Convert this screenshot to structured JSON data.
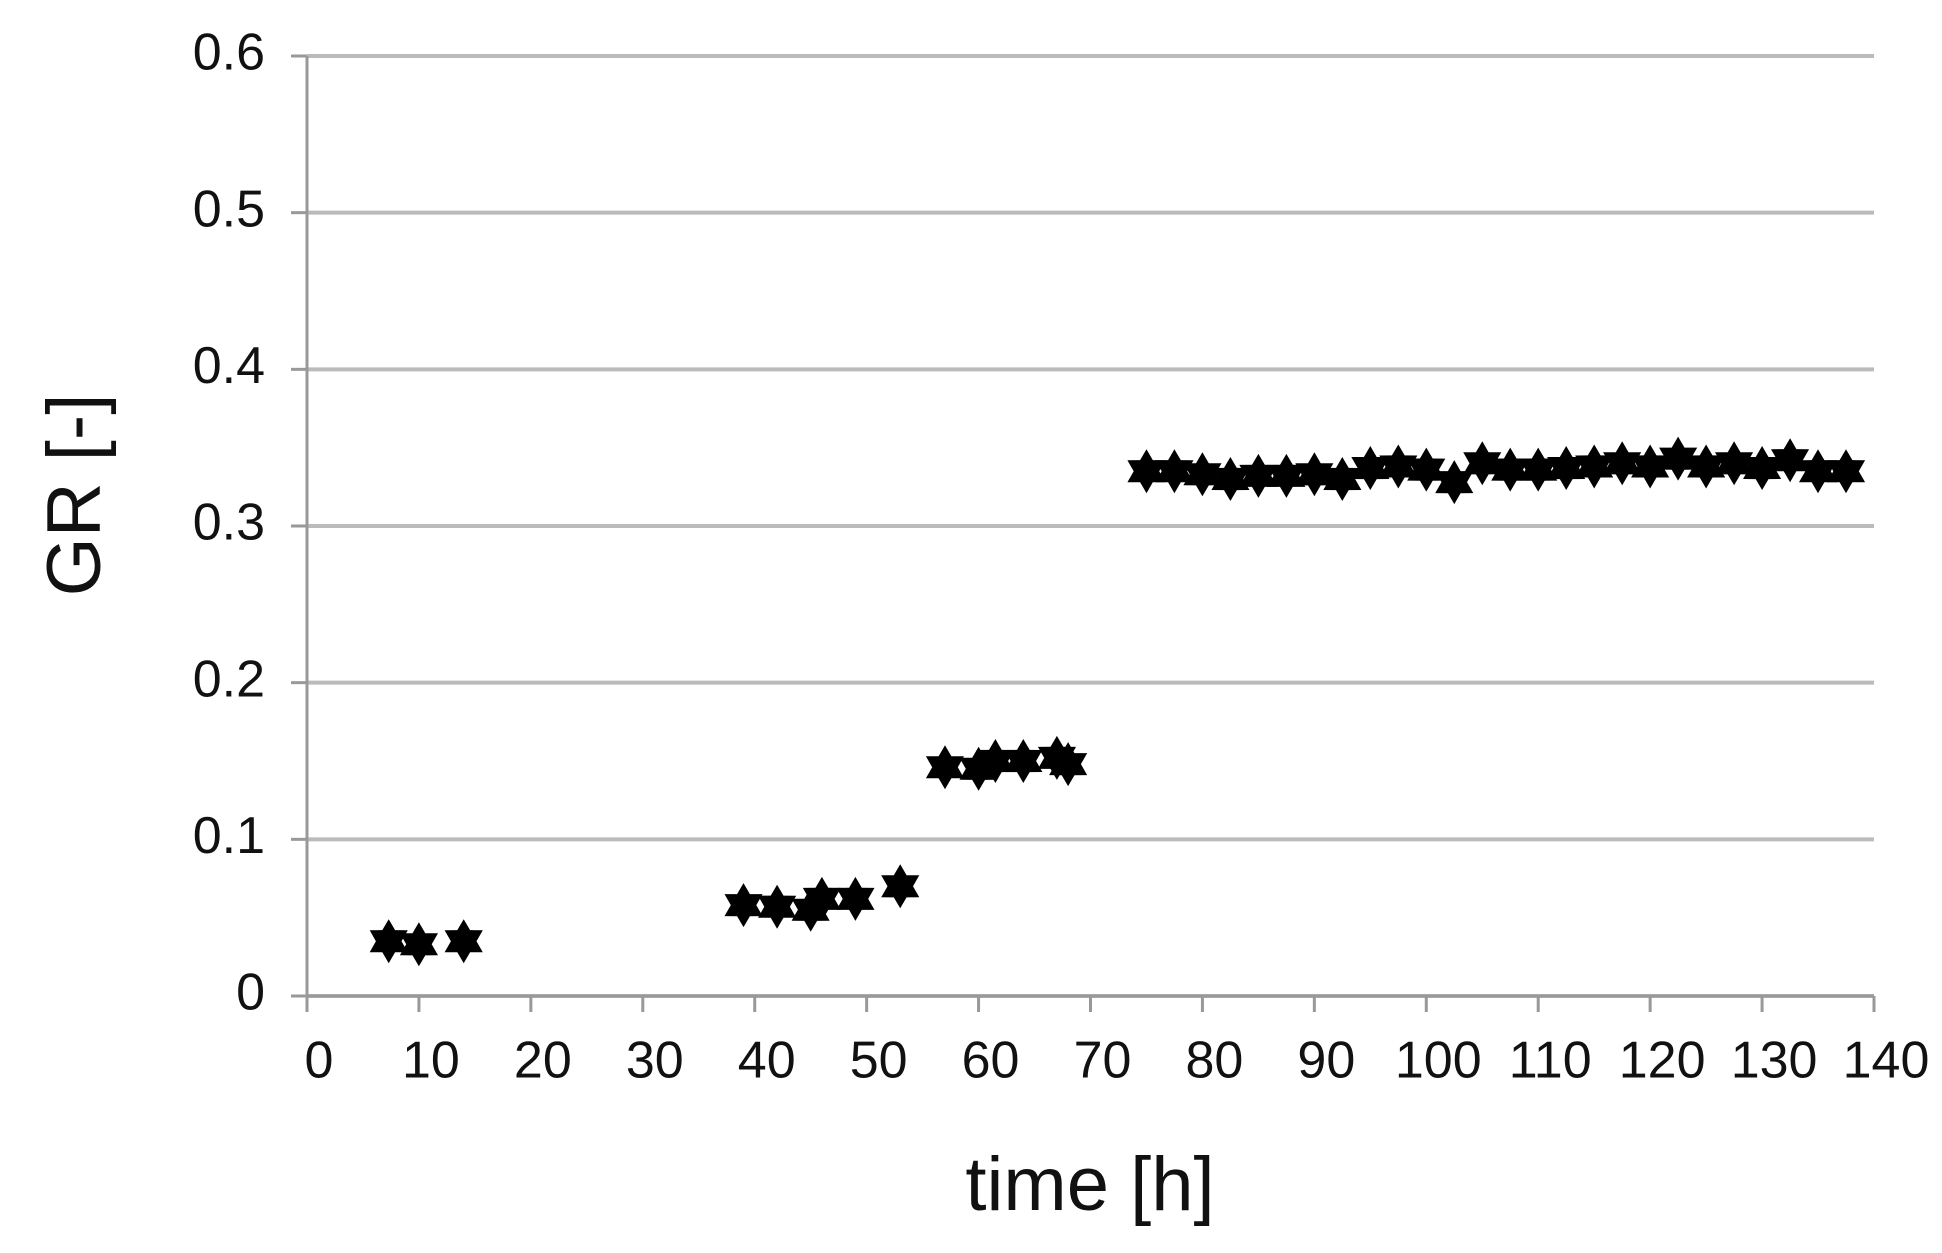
{
  "chart_data": {
    "type": "scatter",
    "x_label": "time [h]",
    "y_label": "GR [-]",
    "series": [
      {
        "color": "#000000",
        "x": [
          7.3,
          10,
          14,
          39,
          42,
          45,
          46,
          49,
          53,
          57,
          60,
          61.5,
          64,
          67,
          68,
          75,
          77.5,
          80,
          82.5,
          85,
          87.5,
          90,
          92.5,
          95,
          97.5,
          100,
          102.5,
          105,
          107.5,
          110,
          112.5,
          115,
          117.5,
          120,
          122.5,
          125,
          127.5,
          130,
          132.5,
          135,
          137.5
        ],
        "values": [
          0.035,
          0.033,
          0.035,
          0.058,
          0.057,
          0.055,
          0.062,
          0.062,
          0.07,
          0.146,
          0.145,
          0.15,
          0.15,
          0.152,
          0.148,
          0.335,
          0.335,
          0.333,
          0.33,
          0.332,
          0.332,
          0.333,
          0.33,
          0.337,
          0.338,
          0.336,
          0.328,
          0.34,
          0.336,
          0.336,
          0.337,
          0.338,
          0.34,
          0.338,
          0.343,
          0.338,
          0.34,
          0.337,
          0.342,
          0.335,
          0.335
        ]
      }
    ],
    "xlim": [
      0,
      140
    ],
    "xticks": [
      0,
      10,
      20,
      30,
      40,
      50,
      60,
      70,
      80,
      90,
      100,
      110,
      120,
      130,
      140
    ],
    "ylim": [
      0,
      0.6
    ],
    "yticks": [
      0,
      0.1,
      0.2,
      0.3,
      0.4,
      0.5,
      0.6
    ],
    "grid": true
  }
}
